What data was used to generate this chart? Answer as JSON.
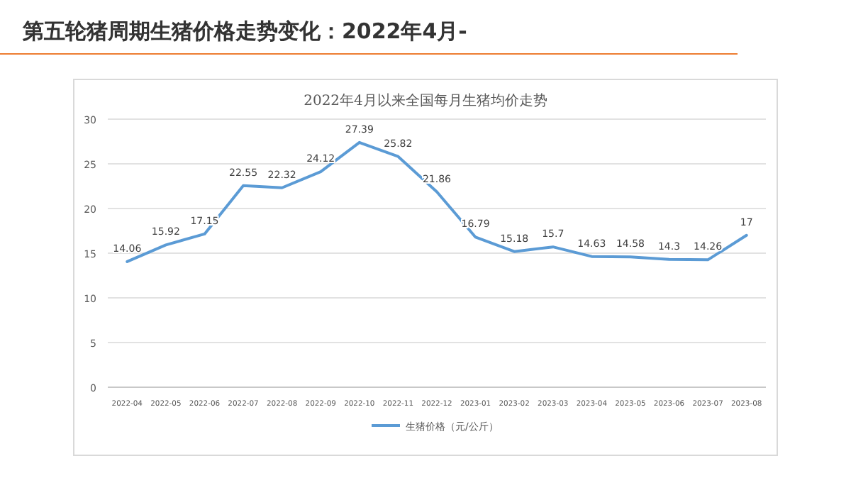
{
  "chart_data": {
    "type": "line",
    "title": "第五轮猪周期生猪价格走势变化：2022年4月-",
    "subtitle": "2022年4月以来全国每月生猪均价走势",
    "categories": [
      "2022-04",
      "2022-05",
      "2022-06",
      "2022-07",
      "2022-08",
      "2022-09",
      "2022-10",
      "2022-11",
      "2022-12",
      "2023-01",
      "2023-02",
      "2023-03",
      "2023-04",
      "2023-05",
      "2023-06",
      "2023-07",
      "2023-08"
    ],
    "series": [
      {
        "name": "生猪价格（元/公斤）",
        "color": "#5b9bd5",
        "values": [
          14.06,
          15.92,
          17.15,
          22.55,
          22.32,
          24.12,
          27.39,
          25.82,
          21.86,
          16.79,
          15.18,
          15.7,
          14.63,
          14.58,
          14.3,
          14.26,
          17
        ]
      }
    ],
    "ylim": [
      0,
      30
    ],
    "yticks": [
      0,
      5,
      10,
      15,
      20,
      25,
      30
    ],
    "grid": "y",
    "data_labels": true,
    "legend": "bottom",
    "marker": "none",
    "line_style": "solid"
  }
}
